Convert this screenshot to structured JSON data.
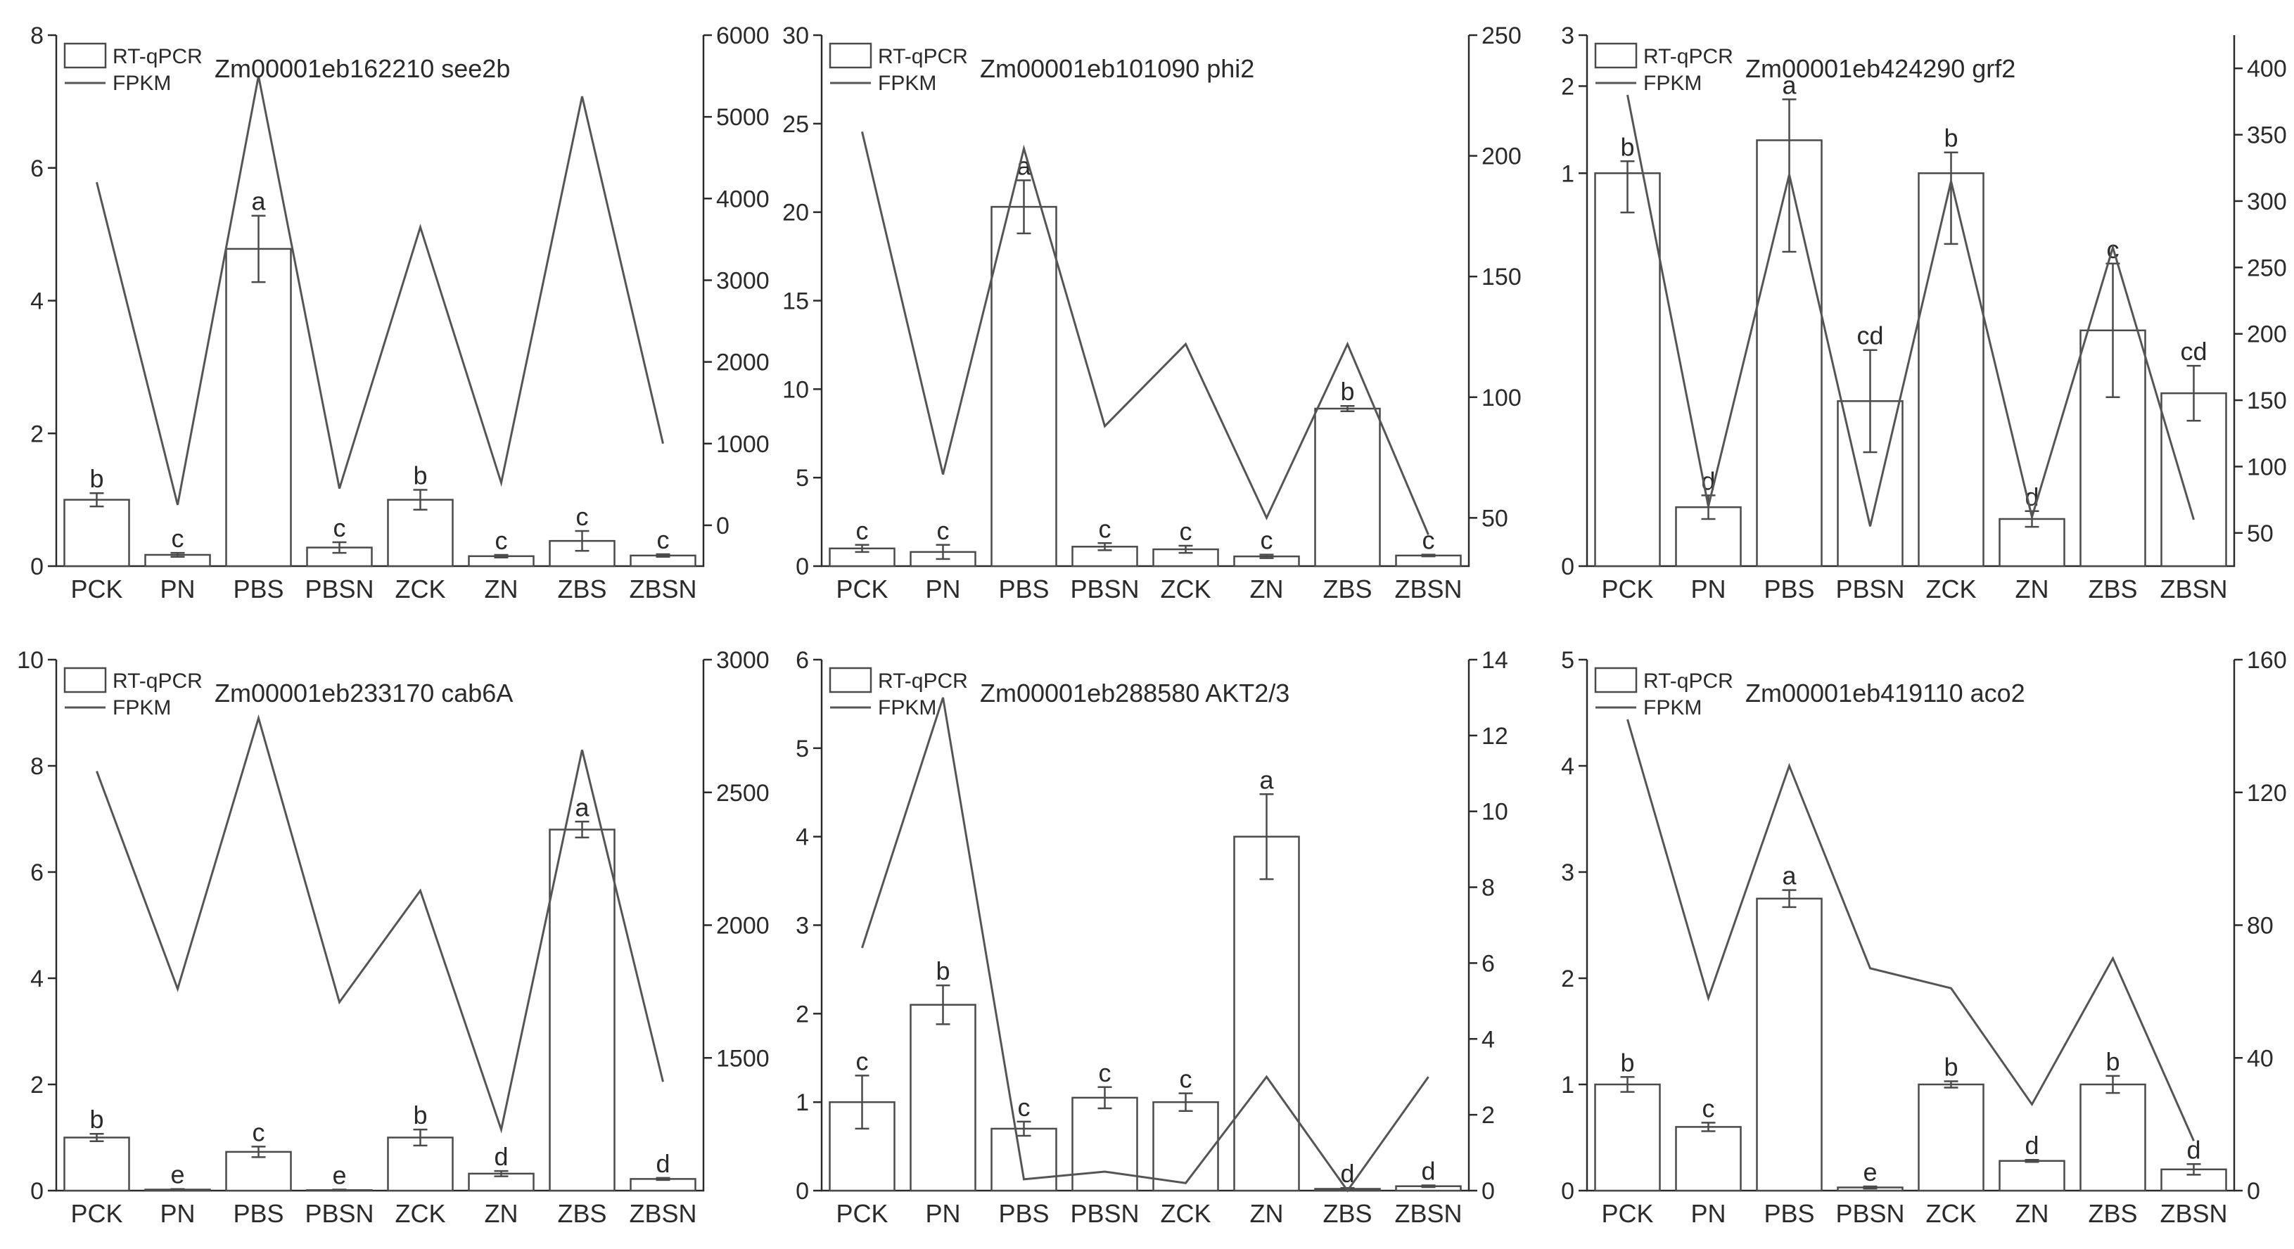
{
  "chart_data": [
    {
      "type": "bar",
      "title": "Zm00001eb162210 see2b",
      "categories": [
        "PCK",
        "PN",
        "PBS",
        "PBSN",
        "ZCK",
        "ZN",
        "ZBS",
        "ZBSN"
      ],
      "legend": [
        "RT-qPCR",
        "FPKM"
      ],
      "ylim": [
        0,
        8
      ],
      "yticks": [
        0,
        2,
        4,
        6,
        8
      ],
      "y2lim": [
        -500,
        6000
      ],
      "y2ticks": [
        0,
        1000,
        2000,
        3000,
        4000,
        5000,
        6000
      ],
      "series": [
        {
          "name": "RT-qPCR",
          "type": "bar",
          "values": [
            1.0,
            0.17,
            4.78,
            0.28,
            1.0,
            0.15,
            0.38,
            0.16
          ],
          "errors": [
            0.1,
            0.03,
            0.5,
            0.08,
            0.15,
            0.02,
            0.15,
            0.02
          ],
          "labels": [
            "b",
            "c",
            "a",
            "c",
            "b",
            "c",
            "c",
            "c"
          ]
        },
        {
          "name": "FPKM",
          "type": "line",
          "values": [
            4200,
            250,
            5500,
            450,
            3650,
            520,
            5250,
            1000
          ]
        }
      ]
    },
    {
      "type": "bar",
      "title": "Zm00001eb101090 phi2",
      "categories": [
        "PCK",
        "PN",
        "PBS",
        "PBSN",
        "ZCK",
        "ZN",
        "ZBS",
        "ZBSN"
      ],
      "legend": [
        "RT-qPCR",
        "FPKM"
      ],
      "ylim": [
        0,
        30
      ],
      "yticks": [
        0,
        5,
        10,
        15,
        20,
        25,
        30
      ],
      "y2lim": [
        30,
        250
      ],
      "y2ticks": [
        50,
        100,
        150,
        200,
        250
      ],
      "series": [
        {
          "name": "RT-qPCR",
          "type": "bar",
          "values": [
            1.0,
            0.8,
            20.3,
            1.1,
            0.95,
            0.55,
            8.9,
            0.6
          ],
          "errors": [
            0.2,
            0.4,
            1.5,
            0.2,
            0.2,
            0.1,
            0.15,
            0.05
          ],
          "labels": [
            "c",
            "c",
            "a",
            "c",
            "c",
            "c",
            "b",
            "c"
          ]
        },
        {
          "name": "FPKM",
          "type": "line",
          "values": [
            210,
            68,
            203,
            88,
            122,
            50,
            122,
            43
          ]
        }
      ]
    },
    {
      "type": "bar",
      "title": "Zm00001eb424290 grf2",
      "categories": [
        "PCK",
        "PN",
        "PBS",
        "PBSN",
        "ZCK",
        "ZN",
        "ZBS",
        "ZBSN"
      ],
      "legend": [
        "RT-qPCR",
        "FPKM"
      ],
      "ylim": [
        0,
        3
      ],
      "yticks": [
        0,
        1,
        2,
        3
      ],
      "ylog": true,
      "y2lim": [
        25,
        425
      ],
      "y2ticks": [
        50,
        100,
        150,
        200,
        250,
        300,
        350,
        400
      ],
      "series": [
        {
          "name": "RT-qPCR",
          "type": "bar",
          "values": [
            1.0,
            0.15,
            1.3,
            0.42,
            1.0,
            0.12,
            0.6,
            0.44
          ],
          "errors": [
            0.1,
            0.03,
            0.5,
            0.13,
            0.18,
            0.02,
            0.17,
            0.07
          ],
          "labels": [
            "b",
            "d",
            "a",
            "cd",
            "b",
            "d",
            "c",
            "cd"
          ]
        },
        {
          "name": "FPKM",
          "type": "line",
          "values": [
            380,
            70,
            320,
            55,
            315,
            62,
            265,
            60
          ]
        }
      ]
    },
    {
      "type": "bar",
      "title": "Zm00001eb233170 cab6A",
      "categories": [
        "PCK",
        "PN",
        "PBS",
        "PBSN",
        "ZCK",
        "ZN",
        "ZBS",
        "ZBSN"
      ],
      "legend": [
        "RT-qPCR",
        "FPKM"
      ],
      "ylim": [
        0,
        10
      ],
      "yticks": [
        0,
        2,
        4,
        6,
        8,
        10
      ],
      "y2lim": [
        1000,
        3000
      ],
      "y2ticks": [
        1500,
        2000,
        2500,
        3000
      ],
      "series": [
        {
          "name": "RT-qPCR",
          "type": "bar",
          "values": [
            1.0,
            0.02,
            0.73,
            0.01,
            1.0,
            0.32,
            6.8,
            0.22
          ],
          "errors": [
            0.07,
            0.01,
            0.1,
            0.01,
            0.15,
            0.05,
            0.15,
            0.02
          ],
          "labels": [
            "b",
            "e",
            "c",
            "e",
            "b",
            "d",
            "a",
            "d"
          ]
        },
        {
          "name": "FPKM",
          "type": "line",
          "values": [
            2580,
            1760,
            2780,
            1710,
            2130,
            1230,
            2660,
            1410
          ]
        }
      ]
    },
    {
      "type": "bar",
      "title": "Zm00001eb288580 AKT2/3",
      "categories": [
        "PCK",
        "PN",
        "PBS",
        "PBSN",
        "ZCK",
        "ZN",
        "ZBS",
        "ZBSN"
      ],
      "legend": [
        "RT-qPCR",
        "FPKM"
      ],
      "ylim": [
        0,
        6
      ],
      "yticks": [
        0,
        1,
        2,
        3,
        4,
        5,
        6
      ],
      "y2lim": [
        0,
        14
      ],
      "y2ticks": [
        0,
        2,
        4,
        6,
        8,
        10,
        12,
        14
      ],
      "series": [
        {
          "name": "RT-qPCR",
          "type": "bar",
          "values": [
            1.0,
            2.1,
            0.7,
            1.05,
            1.0,
            4.0,
            0.02,
            0.05
          ],
          "errors": [
            0.3,
            0.22,
            0.08,
            0.12,
            0.1,
            0.48,
            0.01,
            0.01
          ],
          "labels": [
            "c",
            "b",
            "c",
            "c",
            "c",
            "a",
            "d",
            "d"
          ]
        },
        {
          "name": "FPKM",
          "type": "line",
          "values": [
            6.4,
            13.0,
            0.3,
            0.5,
            0.2,
            3.0,
            0.0,
            3.0
          ]
        }
      ]
    },
    {
      "type": "bar",
      "title": "Zm00001eb419110 aco2",
      "categories": [
        "PCK",
        "PN",
        "PBS",
        "PBSN",
        "ZCK",
        "ZN",
        "ZBS",
        "ZBSN"
      ],
      "legend": [
        "RT-qPCR",
        "FPKM"
      ],
      "ylim": [
        0,
        5
      ],
      "yticks": [
        0,
        1,
        2,
        3,
        4,
        5
      ],
      "y2lim": [
        0,
        160
      ],
      "y2ticks": [
        0,
        40,
        80,
        120,
        160
      ],
      "series": [
        {
          "name": "RT-qPCR",
          "type": "bar",
          "values": [
            1.0,
            0.6,
            2.75,
            0.03,
            1.0,
            0.28,
            1.0,
            0.2
          ],
          "errors": [
            0.07,
            0.04,
            0.08,
            0.01,
            0.03,
            0.01,
            0.08,
            0.05
          ],
          "labels": [
            "b",
            "c",
            "a",
            "e",
            "b",
            "d",
            "b",
            "d"
          ]
        },
        {
          "name": "FPKM",
          "type": "line",
          "values": [
            142,
            58,
            128,
            67,
            61,
            26,
            70,
            15
          ]
        }
      ]
    }
  ]
}
